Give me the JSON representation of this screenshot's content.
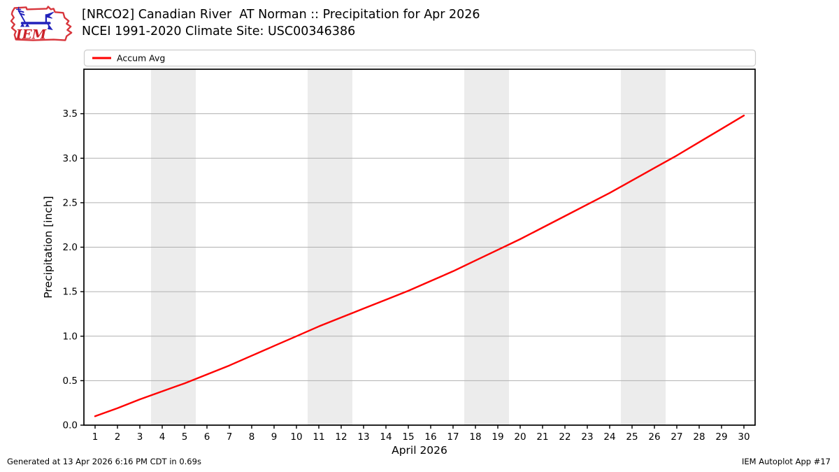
{
  "header": {
    "title_line1": "[NRCO2] Canadian River  AT Norman :: Precipitation for Apr 2026",
    "title_line2": "NCEI 1991-2020 Climate Site: USC00346386",
    "logo_text": "IEM"
  },
  "legend": {
    "items": [
      {
        "label": "Accum Avg",
        "color": "#ff0000"
      }
    ]
  },
  "footer": {
    "generated": "Generated at 13 Apr 2026 6:16 PM CDT in 0.69s",
    "app": "IEM Autoplot App #17"
  },
  "chart_data": {
    "type": "line",
    "title": "[NRCO2] Canadian River  AT Norman :: Precipitation for Apr 2026",
    "subtitle": "NCEI 1991-2020 Climate Site: USC00346386",
    "xlabel": "April 2026",
    "ylabel": "Precipitation [inch]",
    "x": [
      1,
      2,
      3,
      4,
      5,
      6,
      7,
      8,
      9,
      10,
      11,
      12,
      13,
      14,
      15,
      16,
      17,
      18,
      19,
      20,
      21,
      22,
      23,
      24,
      25,
      26,
      27,
      28,
      29,
      30
    ],
    "series": [
      {
        "name": "Accum Avg",
        "color": "#ff0000",
        "values": [
          0.1,
          0.19,
          0.29,
          0.38,
          0.47,
          0.57,
          0.67,
          0.78,
          0.89,
          1.0,
          1.11,
          1.21,
          1.31,
          1.41,
          1.51,
          1.62,
          1.73,
          1.85,
          1.97,
          2.09,
          2.22,
          2.35,
          2.48,
          2.61,
          2.75,
          2.89,
          3.03,
          3.18,
          3.33,
          3.48
        ]
      }
    ],
    "xlim": [
      0.5,
      30.5
    ],
    "ylim": [
      0,
      4.0
    ],
    "xticks": [
      1,
      2,
      3,
      4,
      5,
      6,
      7,
      8,
      9,
      10,
      11,
      12,
      13,
      14,
      15,
      16,
      17,
      18,
      19,
      20,
      21,
      22,
      23,
      24,
      25,
      26,
      27,
      28,
      29,
      30
    ],
    "yticks": [
      0.0,
      0.5,
      1.0,
      1.5,
      2.0,
      2.5,
      3.0,
      3.5
    ],
    "weekend_bands": [
      [
        3.5,
        5.5
      ],
      [
        10.5,
        12.5
      ],
      [
        17.5,
        19.5
      ],
      [
        24.5,
        26.5
      ]
    ],
    "grid": "horizontal",
    "legend_position": "top",
    "colors": {
      "line": "#ff0000",
      "band": "#ececec",
      "grid": "#b0b0b0",
      "spine": "#000000",
      "legend_border": "#cccccc",
      "logo_red": "#d8363c",
      "logo_blue": "#2222bb"
    }
  }
}
